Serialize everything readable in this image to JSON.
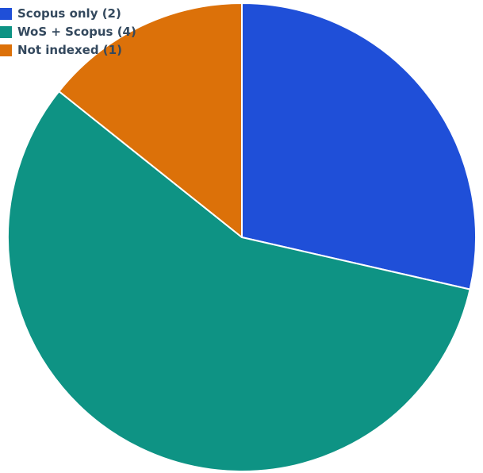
{
  "chart_data": {
    "type": "pie",
    "title": "",
    "slices": [
      {
        "label": "Scopus only (2)",
        "value": 2,
        "color": "#1f4fd8"
      },
      {
        "label": "WoS + Scopus (4)",
        "value": 4,
        "color": "#0e9384"
      },
      {
        "label": "Not indexed (1)",
        "value": 1,
        "color": "#dc7109"
      }
    ],
    "start_angle": "12 o'clock",
    "direction": "clockwise",
    "legend_position": "top-left",
    "slice_border_color": "#ffffff"
  }
}
